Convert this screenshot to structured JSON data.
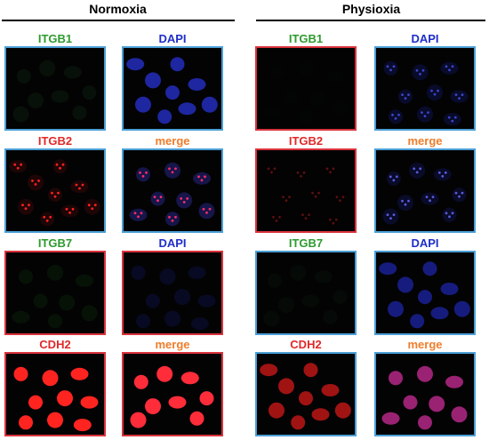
{
  "groups": [
    {
      "title": "Normoxia"
    },
    {
      "title": "Physioxia"
    }
  ],
  "panels": [
    {
      "label": "ITGB1",
      "label_color": "#2e9a2e",
      "border": "blue",
      "cell_color": "#163a16",
      "dot_color": "",
      "fill": 0.25
    },
    {
      "label": "DAPI",
      "label_color": "#1f2fc8",
      "border": "blue",
      "cell_color": "#2530c8",
      "dot_color": "",
      "fill": 0.8
    },
    {
      "label": "ITGB1",
      "label_color": "#2e9a2e",
      "border": "red",
      "cell_color": "#0c150c",
      "dot_color": "",
      "fill": 0.1
    },
    {
      "label": "DAPI",
      "label_color": "#1f2fc8",
      "border": "blue",
      "cell_color": "#141a66",
      "dot_color": "#3a45c8",
      "fill": 0.4
    },
    {
      "label": "ITGB2",
      "label_color": "#e02828",
      "border": "blue",
      "cell_color": "#3a0808",
      "dot_color": "#ff2020",
      "fill": 0.5
    },
    {
      "label": "merge",
      "label_color": "#f07d2a",
      "border": "blue",
      "cell_color": "#23237a",
      "dot_color": "#ff2a6a",
      "fill": 0.6
    },
    {
      "label": "ITGB2",
      "label_color": "#e02828",
      "border": "red",
      "cell_color": "#150404",
      "dot_color": "#5a1010",
      "fill": 0.1
    },
    {
      "label": "merge",
      "label_color": "#f07d2a",
      "border": "blue",
      "cell_color": "#141a5e",
      "dot_color": "#5a5ae0",
      "fill": 0.4
    },
    {
      "label": "ITGB7",
      "label_color": "#2e9a2e",
      "border": "red",
      "cell_color": "#123512",
      "dot_color": "",
      "fill": 0.3
    },
    {
      "label": "DAPI",
      "label_color": "#1f2fc8",
      "border": "red",
      "cell_color": "#141a5e",
      "dot_color": "",
      "fill": 0.35
    },
    {
      "label": "ITGB7",
      "label_color": "#2e9a2e",
      "border": "blue",
      "cell_color": "#0f2a0f",
      "dot_color": "",
      "fill": 0.2
    },
    {
      "label": "DAPI",
      "label_color": "#1f2fc8",
      "border": "blue",
      "cell_color": "#2028b0",
      "dot_color": "",
      "fill": 0.7
    },
    {
      "label": "CDH2",
      "label_color": "#e02828",
      "border": "red",
      "cell_color": "#ff2420",
      "dot_color": "",
      "fill": 1.0
    },
    {
      "label": "merge",
      "label_color": "#f07d2a",
      "border": "red",
      "cell_color": "#ff2c3a",
      "dot_color": "",
      "fill": 1.0
    },
    {
      "label": "CDH2",
      "label_color": "#e02828",
      "border": "blue",
      "cell_color": "#c81818",
      "dot_color": "",
      "fill": 0.8
    },
    {
      "label": "merge",
      "label_color": "#f07d2a",
      "border": "blue",
      "cell_color": "#c02a90",
      "dot_color": "",
      "fill": 0.8
    }
  ]
}
